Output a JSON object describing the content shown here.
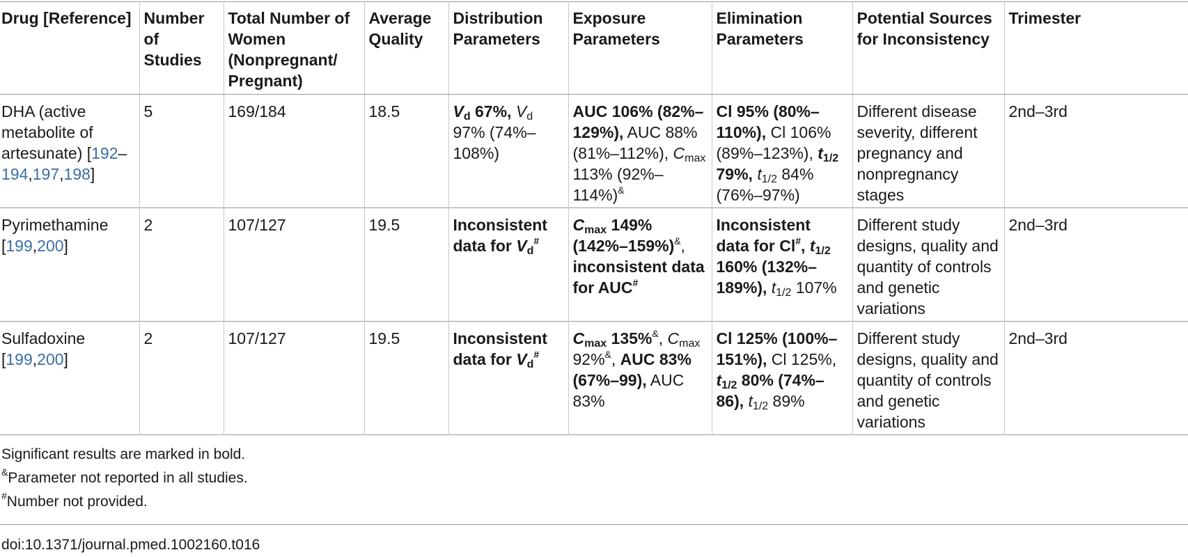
{
  "headers": [
    "Drug [Reference]",
    "Number of Studies",
    "Total Number of Women (Nonpregnant/ Pregnant)",
    "Average Quality",
    "Distribution Parameters",
    "Exposure Parameters",
    "Elimination Parameters",
    "Potential Sources for Inconsistency",
    "Trimester"
  ],
  "rows": [
    {
      "drug": "DHA (active metabolite of artesunate) [",
      "refs": [
        "192",
        "–",
        "194",
        ",",
        "197",
        ",",
        "198"
      ],
      "drug_close": "]",
      "studies": "5",
      "women": "169/184",
      "quality": "18.5",
      "distribution": {
        "p1_sym": "V",
        "p1_sub": "d",
        "p1_bold": " 67%,",
        "p2_sym": "V",
        "p2_sub": "d",
        "p2_rest": " 97% (74%–108%)"
      },
      "exposure": {
        "p1_bold": "AUC 106% (82%–129%),",
        "p2": " AUC 88% (81%–112%), ",
        "p3_sym": "C",
        "p3_sub": "max",
        "p3_rest": " 113% (92%–114%)",
        "p3_sup": "&"
      },
      "elimination": {
        "p1_bold": "Cl 95% (80%–110%),",
        "p2": " Cl 106% (89%–123%), ",
        "p3_sym": "t",
        "p3_sub": "1/2",
        "p3_bold": " 79%,",
        "p4_sym": "t",
        "p4_sub": "1/2",
        "p4_rest": " 84% (76%–97%)"
      },
      "sources": "Different disease severity, different pregnancy and nonpregnancy stages",
      "trimester": "2nd–3rd"
    },
    {
      "drug": "Pyrimethamine [",
      "refs": [
        "199",
        ",",
        "200"
      ],
      "drug_close": "]",
      "studies": "2",
      "women": "107/127",
      "quality": "19.5",
      "distribution": {
        "bold": "Inconsistent data for ",
        "sym": "V",
        "sub": "d",
        "sup": "#"
      },
      "exposure": {
        "p1_sym": "C",
        "p1_sub": "max",
        "p1_bold": " 149% (142%–159%)",
        "p1_sup": "&",
        "p1_tail": ",",
        "p2_bold": " inconsistent data for AUC",
        "p2_sup": "#"
      },
      "elimination": {
        "p1_bold": "Inconsistent data for Cl",
        "p1_sup": "#",
        "p1_tail": ", ",
        "p2_sym": "t",
        "p2_sub": "1/2",
        "p2_bold": " 160% (132%–189%),",
        "p3_sym": "t",
        "p3_sub": "1/2",
        "p3_rest": " 107%"
      },
      "sources": "Different study designs, quality and quantity of controls and genetic variations",
      "trimester": "2nd–3rd"
    },
    {
      "drug": "Sulfadoxine [",
      "refs": [
        "199",
        ",",
        "200"
      ],
      "drug_close": "]",
      "studies": "2",
      "women": "107/127",
      "quality": "19.5",
      "distribution": {
        "bold": "Inconsistent data for ",
        "sym": "V",
        "sub": "d",
        "sup": "#"
      },
      "exposure": {
        "p1_sym": "C",
        "p1_sub": "max",
        "p1_bold": " 135%",
        "p1_sup": "&",
        "p1_tail": ", ",
        "p2_sym": "C",
        "p2_sub": "max",
        "p2_rest": " 92%",
        "p2_sup": "&",
        "p2_tail": ", ",
        "p3_bold": "AUC 83% (67%–99),",
        "p4": " AUC 83%"
      },
      "elimination": {
        "p1_bold": "Cl 125% (100%–151%),",
        "p2": " Cl 125%, ",
        "p3_sym": "t",
        "p3_sub": "1/2",
        "p3_bold": " 80% (74%–86),",
        "p4_sym": "t",
        "p4_sub": "1/2",
        "p4_rest": " 89%"
      },
      "sources": "Different study designs, quality and quantity of controls and genetic variations",
      "trimester": "2nd–3rd"
    }
  ],
  "notes": {
    "n1": "Significant results are marked in bold.",
    "n2_sup": "&",
    "n2": "Parameter not reported in all studies.",
    "n3_sup": "#",
    "n3": "Number not provided."
  },
  "doi": "doi:10.1371/journal.pmed.1002160.t016",
  "colors": {
    "link": "#3a6ea5",
    "rule": "#9a9a9a",
    "text": "#1a1a1a"
  }
}
